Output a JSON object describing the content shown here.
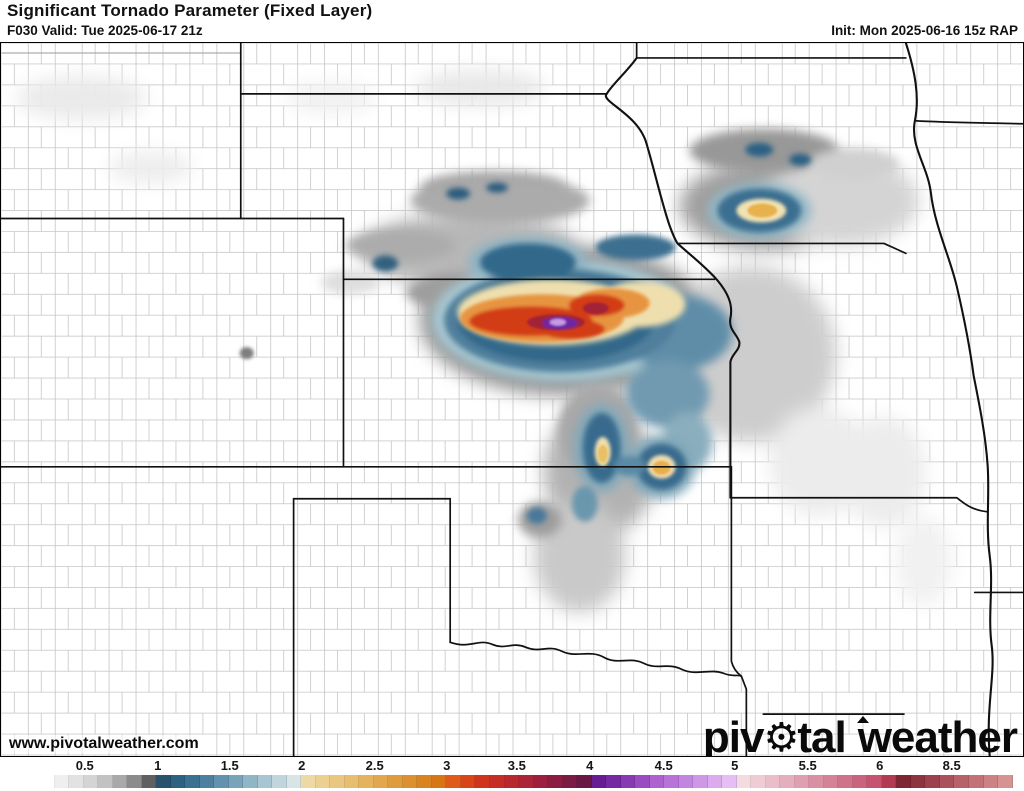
{
  "header": {
    "title": "Significant Tornado Parameter (Fixed Layer)",
    "valid": "F030 Valid: Tue 2025-06-17 21z",
    "init": "Init: Mon 2025-06-16 15z RAP"
  },
  "map": {
    "watermark": "www.pivotalweather.com"
  },
  "logo": {
    "part1": "piv",
    "part2": "tal",
    "part3": "weather",
    "gear_icon": "gear-icon"
  },
  "legend": {
    "ticks": [
      {
        "label": "0.5",
        "pct": 4.6
      },
      {
        "label": "1",
        "pct": 12.1
      },
      {
        "label": "1.5",
        "pct": 19.5
      },
      {
        "label": "2",
        "pct": 26.9
      },
      {
        "label": "2.5",
        "pct": 34.4
      },
      {
        "label": "3",
        "pct": 41.8
      },
      {
        "label": "3.5",
        "pct": 49.0
      },
      {
        "label": "4",
        "pct": 56.5
      },
      {
        "label": "4.5",
        "pct": 64.1
      },
      {
        "label": "5",
        "pct": 71.4
      },
      {
        "label": "5.5",
        "pct": 78.9
      },
      {
        "label": "6",
        "pct": 86.3
      },
      {
        "label": "8.5",
        "pct": 93.7
      }
    ],
    "hatch_from_index": 59,
    "colors": [
      "#ffffff",
      "#efefef",
      "#e2e2e2",
      "#d4d4d4",
      "#c2c2c2",
      "#a9a9a9",
      "#8b8b8b",
      "#606060",
      "#27536f",
      "#2d6181",
      "#3a7090",
      "#4d809f",
      "#6292ad",
      "#78a3b9",
      "#90b5c5",
      "#a8c6d1",
      "#c0d6dc",
      "#d8e5e6",
      "#eed9a4",
      "#ecd092",
      "#eac780",
      "#e7bd6f",
      "#e5b25e",
      "#e2a74e",
      "#df9c3e",
      "#dc902f",
      "#d98420",
      "#d67713",
      "#e05a1b",
      "#d94419",
      "#d1341d",
      "#c62d26",
      "#b9282f",
      "#ab2438",
      "#9c203d",
      "#8c1d41",
      "#7b1a43",
      "#691744",
      "#661c92",
      "#7529a2",
      "#873ab2",
      "#9a4dc1",
      "#ad62d0",
      "#b873d8",
      "#c386e0",
      "#cf98e7",
      "#dbabee",
      "#e6bdf4",
      "#f3dbe0",
      "#efccd4",
      "#eabdc8",
      "#e5aebc",
      "#e09fb0",
      "#da90a3",
      "#d58197",
      "#cf728b",
      "#ca637e",
      "#c45470",
      "#b23b52",
      "#7e2634",
      "#8d3440",
      "#9c424e",
      "#aa515b",
      "#b76169",
      "#c27176",
      "#cc8284",
      "#d59391"
    ]
  }
}
